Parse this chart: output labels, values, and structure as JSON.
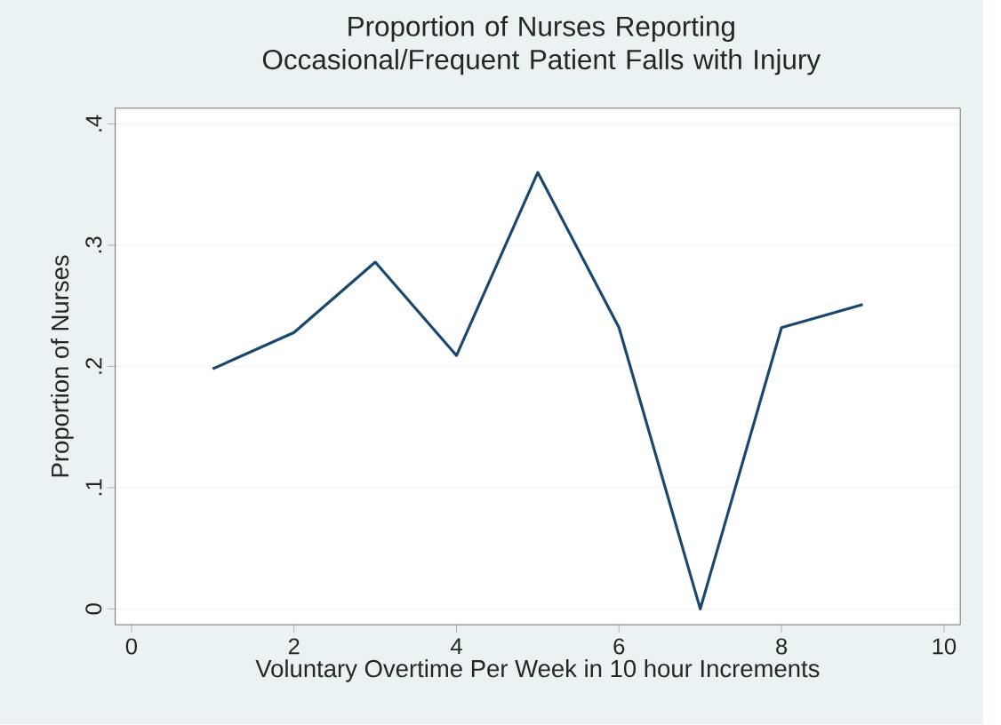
{
  "chart_data": {
    "type": "line",
    "title": "Proportion of Nurses Reporting\nOccasional/Frequent Patient Falls with Injury",
    "xlabel": "Voluntary Overtime Per Week in 10 hour Increments",
    "ylabel": "Proportion of Nurses",
    "x": [
      1,
      2,
      3,
      4,
      5,
      6,
      7,
      8,
      9
    ],
    "series": [
      {
        "color": "#1a476f",
        "values": [
          0.198,
          0.228,
          0.286,
          0.209,
          0.36,
          0.232,
          0,
          0.232,
          0.251
        ]
      }
    ],
    "xlim": [
      -0.2,
      10.2
    ],
    "xticks": [
      0,
      2,
      4,
      6,
      8,
      10
    ],
    "ylim": [
      -0.013,
      0.413
    ],
    "yticks": [
      {
        "value": 0,
        "label": "0"
      },
      {
        "value": 0.1,
        "label": ".1"
      },
      {
        "value": 0.2,
        "label": ".2"
      },
      {
        "value": 0.3,
        "label": ".3"
      },
      {
        "value": 0.4,
        "label": ".4"
      }
    ],
    "grid": "y",
    "marker": "none",
    "line_style": "solid"
  }
}
